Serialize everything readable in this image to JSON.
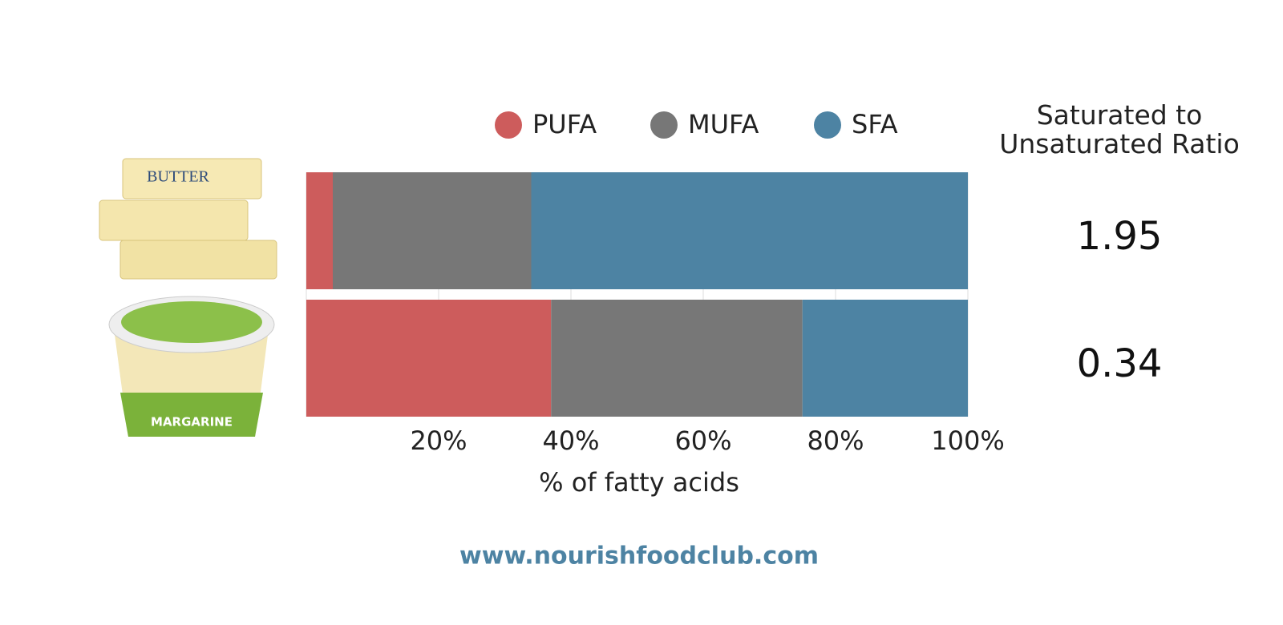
{
  "chart_data": {
    "type": "stacked-barh",
    "categories": [
      null,
      null
    ],
    "images": [
      {
        "label": "BUTTER"
      },
      {
        "label": "MARGARINE"
      }
    ],
    "series": [
      {
        "name": "PUFA",
        "color": "#cd5c5c",
        "values": [
          4,
          37
        ]
      },
      {
        "name": "MUFA",
        "color": "#777777",
        "values": [
          30,
          38
        ]
      },
      {
        "name": "SFA",
        "color": "#4d83a3",
        "values": [
          66,
          25
        ]
      }
    ],
    "xlim": [
      0,
      100
    ],
    "xticks": [
      {
        "value": 20,
        "label": "20%"
      },
      {
        "value": 40,
        "label": "40%"
      },
      {
        "value": 60,
        "label": "60%"
      },
      {
        "value": 80,
        "label": "80%"
      },
      {
        "value": 100,
        "label": "100%"
      }
    ],
    "xlabel": "% of fatty acids",
    "grid": true,
    "ratio_title": "Saturated to Unsaturated Ratio",
    "ratios": [
      1.95,
      0.34
    ],
    "footer": "www.nourishfoodclub.com"
  }
}
